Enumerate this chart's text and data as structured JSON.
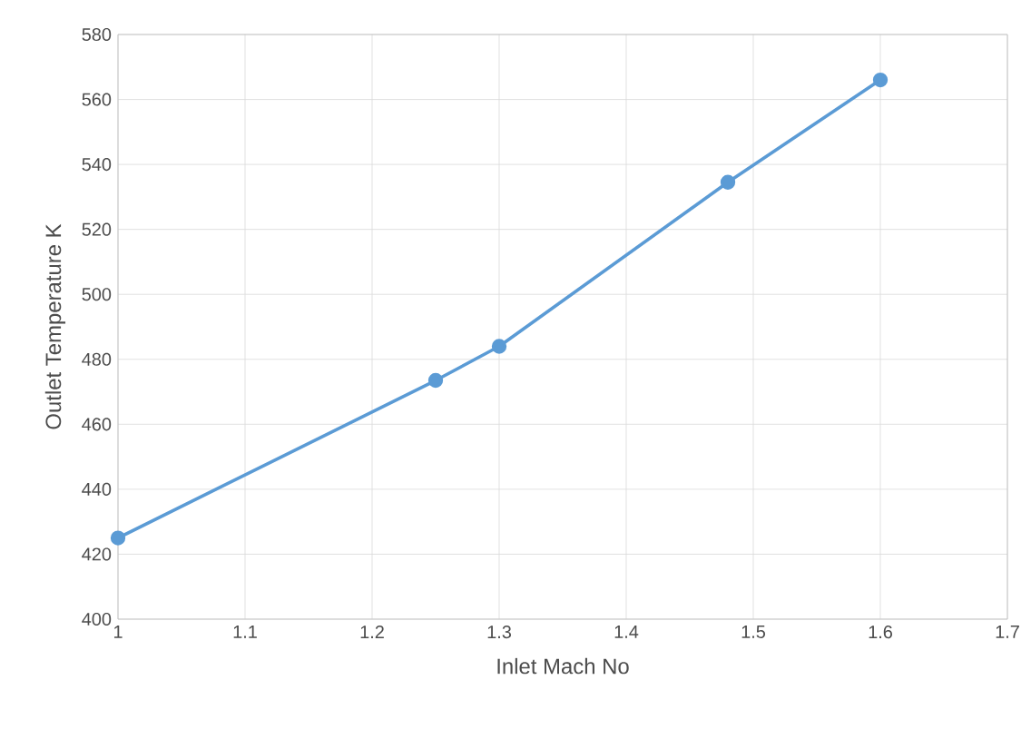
{
  "chart_data": {
    "type": "line",
    "xlabel": "Inlet Mach No",
    "ylabel": "Outlet Temperature K",
    "x": [
      1,
      1.25,
      1.3,
      1.48,
      1.6
    ],
    "series": [
      {
        "color": "#5b9bd5",
        "values": [
          425,
          473.5,
          484,
          534.5,
          566
        ]
      }
    ],
    "xlim": [
      1,
      1.7
    ],
    "xticks": [
      1,
      1.1,
      1.2,
      1.3,
      1.4,
      1.5,
      1.6,
      1.7
    ],
    "ylim": [
      400,
      580
    ],
    "yticks": [
      400,
      420,
      440,
      460,
      480,
      500,
      520,
      540,
      560,
      580
    ],
    "grid": true,
    "marker": "circle",
    "line_style": "solid"
  }
}
